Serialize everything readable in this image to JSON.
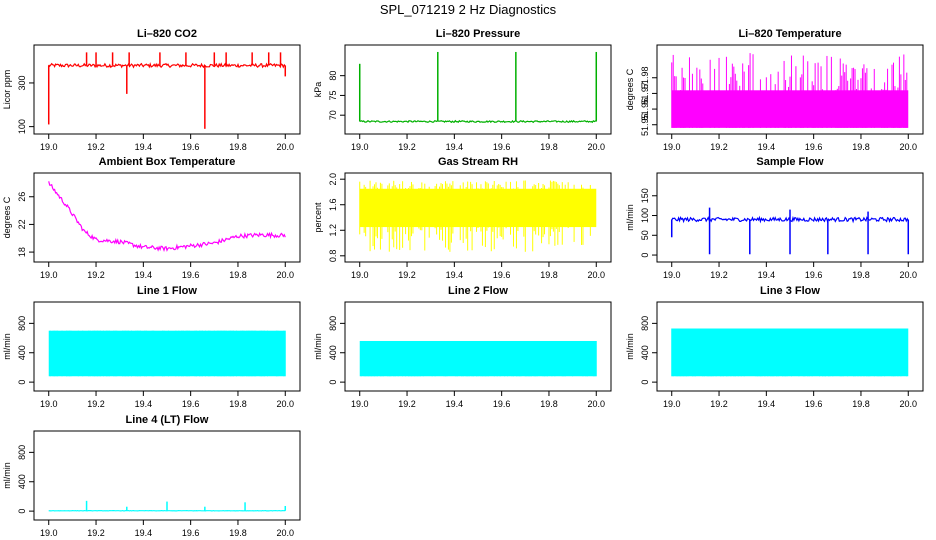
{
  "figure_title": "SPL_071219  2 Hz Diagnostics",
  "chart_data": [
    {
      "type": "line",
      "title": "Li–820 CO2",
      "ylabel": "Licor ppm",
      "color": "#ff0000",
      "xlim": [
        18.98,
        20.02
      ],
      "ylim": [
        80,
        460
      ],
      "xticks": [
        "19.0",
        "19.2",
        "19.4",
        "19.6",
        "19.8",
        "20.0"
      ],
      "yticks": [
        {
          "v": 100,
          "label": "100"
        },
        {
          "v": 300,
          "label": "300"
        }
      ],
      "baseline": 380,
      "noise": 8,
      "spikes": [
        {
          "x": 19.16,
          "y": 440
        },
        {
          "x": 19.2,
          "y": 440
        },
        {
          "x": 19.27,
          "y": 440
        },
        {
          "x": 19.34,
          "y": 440
        },
        {
          "x": 19.47,
          "y": 440
        },
        {
          "x": 19.58,
          "y": 440
        },
        {
          "x": 19.7,
          "y": 440
        },
        {
          "x": 19.75,
          "y": 440
        },
        {
          "x": 19.86,
          "y": 440
        },
        {
          "x": 19.93,
          "y": 440
        },
        {
          "x": 19.98,
          "y": 440
        }
      ],
      "dips": [
        {
          "x": 19.0,
          "y": 110
        },
        {
          "x": 19.33,
          "y": 250
        },
        {
          "x": 19.66,
          "y": 90
        },
        {
          "x": 20.0,
          "y": 330
        }
      ]
    },
    {
      "type": "line",
      "title": "Li–820 Pressure",
      "ylabel": "kPa",
      "color": "#00b000",
      "xlim": [
        18.98,
        20.02
      ],
      "ylim": [
        66,
        87
      ],
      "xticks": [
        "19.0",
        "19.2",
        "19.4",
        "19.6",
        "19.8",
        "20.0"
      ],
      "yticks": [
        {
          "v": 70,
          "label": "70"
        },
        {
          "v": 75,
          "label": "75"
        },
        {
          "v": 80,
          "label": "80"
        }
      ],
      "baseline": 68.4,
      "noise": 0.2,
      "spikes": [
        {
          "x": 19.0,
          "y": 83
        },
        {
          "x": 19.33,
          "y": 86
        },
        {
          "x": 19.66,
          "y": 86
        },
        {
          "x": 20.0,
          "y": 86
        }
      ],
      "dips": []
    },
    {
      "type": "band",
      "title": "Li–820 Temperature",
      "ylabel": "degrees C",
      "color": "#ff00ff",
      "xlim": [
        18.98,
        20.02
      ],
      "ylim": [
        51.946,
        51.999
      ],
      "xticks": [
        "19.0",
        "19.2",
        "19.4",
        "19.6",
        "19.8",
        "20.0"
      ],
      "yticks": [
        {
          "v": 51.95,
          "label": "51.95"
        },
        {
          "v": 51.96,
          "label": "51.96"
        },
        {
          "v": 51.97,
          "label": "51.97"
        },
        {
          "v": 51.98,
          "label": "51.98"
        }
      ],
      "low": 51.948,
      "high": 51.972,
      "top": 51.996
    },
    {
      "type": "line",
      "title": "Ambient Box Temperature",
      "ylabel": "degrees C",
      "color": "#ff00ff",
      "xlim": [
        18.98,
        20.02
      ],
      "ylim": [
        17,
        29
      ],
      "xticks": [
        "19.0",
        "19.2",
        "19.4",
        "19.6",
        "19.8",
        "20.0"
      ],
      "yticks": [
        {
          "v": 18,
          "label": "18"
        },
        {
          "v": 22,
          "label": "22"
        },
        {
          "v": 26,
          "label": "26"
        }
      ],
      "trend": [
        [
          19.0,
          28
        ],
        [
          19.08,
          24.5
        ],
        [
          19.15,
          21
        ],
        [
          19.2,
          19.8
        ],
        [
          19.3,
          19.5
        ],
        [
          19.4,
          18.7
        ],
        [
          19.5,
          18.5
        ],
        [
          19.6,
          18.9
        ],
        [
          19.7,
          19.3
        ],
        [
          19.8,
          20.3
        ],
        [
          19.9,
          20.5
        ],
        [
          20.0,
          20.4
        ]
      ],
      "noise": 0.3
    },
    {
      "type": "band",
      "title": "Gas Stream RH",
      "ylabel": "percent",
      "color": "#ffff00",
      "xlim": [
        18.98,
        20.02
      ],
      "ylim": [
        0.75,
        2.05
      ],
      "xticks": [
        "19.0",
        "19.2",
        "19.4",
        "19.6",
        "19.8",
        "20.0"
      ],
      "yticks": [
        {
          "v": 0.8,
          "label": "0.8"
        },
        {
          "v": 1.2,
          "label": "1.2"
        },
        {
          "v": 1.6,
          "label": "1.6"
        },
        {
          "v": 2.0,
          "label": "2.0"
        }
      ],
      "low": 1.25,
      "high": 1.85,
      "min": 0.85,
      "max": 1.98
    },
    {
      "type": "line",
      "title": "Sample Flow",
      "ylabel": "ml/min",
      "color": "#0000ff",
      "xlim": [
        18.98,
        20.02
      ],
      "ylim": [
        -10,
        200
      ],
      "xticks": [
        "19.0",
        "19.2",
        "19.4",
        "19.6",
        "19.8",
        "20.0"
      ],
      "yticks": [
        {
          "v": 0,
          "label": "0"
        },
        {
          "v": 50,
          "label": "50"
        },
        {
          "v": 100,
          "label": "100"
        },
        {
          "v": 150,
          "label": "150"
        }
      ],
      "baseline": 90,
      "noise": 5,
      "spikes": [
        {
          "x": 19.16,
          "y": 120
        },
        {
          "x": 19.5,
          "y": 115
        },
        {
          "x": 19.83,
          "y": 110
        }
      ],
      "dips": [
        {
          "x": 19.0,
          "y": 45
        },
        {
          "x": 19.16,
          "y": 2
        },
        {
          "x": 19.33,
          "y": 2
        },
        {
          "x": 19.5,
          "y": 2
        },
        {
          "x": 19.66,
          "y": 2
        },
        {
          "x": 19.83,
          "y": 2
        },
        {
          "x": 20.0,
          "y": 2
        }
      ]
    },
    {
      "type": "band",
      "title": "Line 1 Flow",
      "ylabel": "ml/min",
      "color": "#00ffff",
      "xlim": [
        18.98,
        20.02
      ],
      "ylim": [
        -80,
        1050
      ],
      "xticks": [
        "19.0",
        "19.2",
        "19.4",
        "19.6",
        "19.8",
        "20.0"
      ],
      "yticks": [
        {
          "v": 0,
          "label": "0"
        },
        {
          "v": 400,
          "label": "400"
        },
        {
          "v": 800,
          "label": "800"
        }
      ],
      "low": 80,
      "high": 700,
      "min": 80,
      "max": 700
    },
    {
      "type": "band",
      "title": "Line 2 Flow",
      "ylabel": "ml/min",
      "color": "#00ffff",
      "xlim": [
        18.98,
        20.02
      ],
      "ylim": [
        -80,
        1050
      ],
      "xticks": [
        "19.0",
        "19.2",
        "19.4",
        "19.6",
        "19.8",
        "20.0"
      ],
      "yticks": [
        {
          "v": 0,
          "label": "0"
        },
        {
          "v": 400,
          "label": "400"
        },
        {
          "v": 800,
          "label": "800"
        }
      ],
      "low": 80,
      "high": 560,
      "min": 80,
      "max": 560
    },
    {
      "type": "band",
      "title": "Line 3 Flow",
      "ylabel": "ml/min",
      "color": "#00ffff",
      "xlim": [
        18.98,
        20.02
      ],
      "ylim": [
        -80,
        1050
      ],
      "xticks": [
        "19.0",
        "19.2",
        "19.4",
        "19.6",
        "19.8",
        "20.0"
      ],
      "yticks": [
        {
          "v": 0,
          "label": "0"
        },
        {
          "v": 400,
          "label": "400"
        },
        {
          "v": 800,
          "label": "800"
        }
      ],
      "low": 80,
      "high": 730,
      "min": 80,
      "max": 730
    },
    {
      "type": "line",
      "title": "Line 4 (LT) Flow",
      "ylabel": "ml/min",
      "color": "#00ffff",
      "xlim": [
        18.98,
        20.02
      ],
      "ylim": [
        -80,
        1050
      ],
      "xticks": [
        "19.0",
        "19.2",
        "19.4",
        "19.6",
        "19.8",
        "20.0"
      ],
      "yticks": [
        {
          "v": 0,
          "label": "0"
        },
        {
          "v": 400,
          "label": "400"
        },
        {
          "v": 800,
          "label": "800"
        }
      ],
      "baseline": 5,
      "noise": 2,
      "spikes": [
        {
          "x": 19.16,
          "y": 140
        },
        {
          "x": 19.33,
          "y": 60
        },
        {
          "x": 19.5,
          "y": 130
        },
        {
          "x": 19.66,
          "y": 60
        },
        {
          "x": 19.83,
          "y": 120
        },
        {
          "x": 20.0,
          "y": 70
        }
      ],
      "dips": []
    }
  ]
}
